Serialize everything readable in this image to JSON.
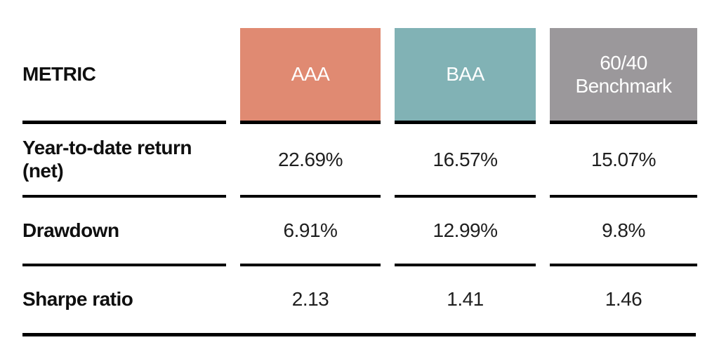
{
  "colors": {
    "aaa": "#E08A72",
    "baa": "#81B2B5",
    "benchmark": "#9B989B",
    "rule": "#000000"
  },
  "table": {
    "header": {
      "metric_label": "METRIC",
      "columns": [
        {
          "label": "AAA",
          "color": "#E08A72"
        },
        {
          "label": "BAA",
          "color": "#81B2B5"
        },
        {
          "label": "60/40\nBenchmark",
          "color": "#9B989B"
        }
      ]
    },
    "rows": [
      {
        "metric": "Year-to-date return\n(net)",
        "values": [
          "22.69%",
          "16.57%",
          "15.07%"
        ]
      },
      {
        "metric": "Drawdown",
        "values": [
          "6.91%",
          "12.99%",
          "9.8%"
        ]
      },
      {
        "metric": "Sharpe ratio",
        "values": [
          "2.13",
          "1.41",
          "1.46"
        ]
      }
    ]
  },
  "chart_data": {
    "type": "table",
    "columns": [
      "METRIC",
      "AAA",
      "BAA",
      "60/40 Benchmark"
    ],
    "rows": [
      [
        "Year-to-date return (net)",
        "22.69%",
        "16.57%",
        "15.07%"
      ],
      [
        "Drawdown",
        "6.91%",
        "12.99%",
        "9.8%"
      ],
      [
        "Sharpe ratio",
        "2.13",
        "1.41",
        "1.46"
      ]
    ],
    "column_header_colors": [
      "none",
      "#E08A72",
      "#81B2B5",
      "#9B989B"
    ],
    "title": "",
    "legend_position": "none",
    "grid": "segmented horizontal rules between rows, continuous bottom rule"
  }
}
